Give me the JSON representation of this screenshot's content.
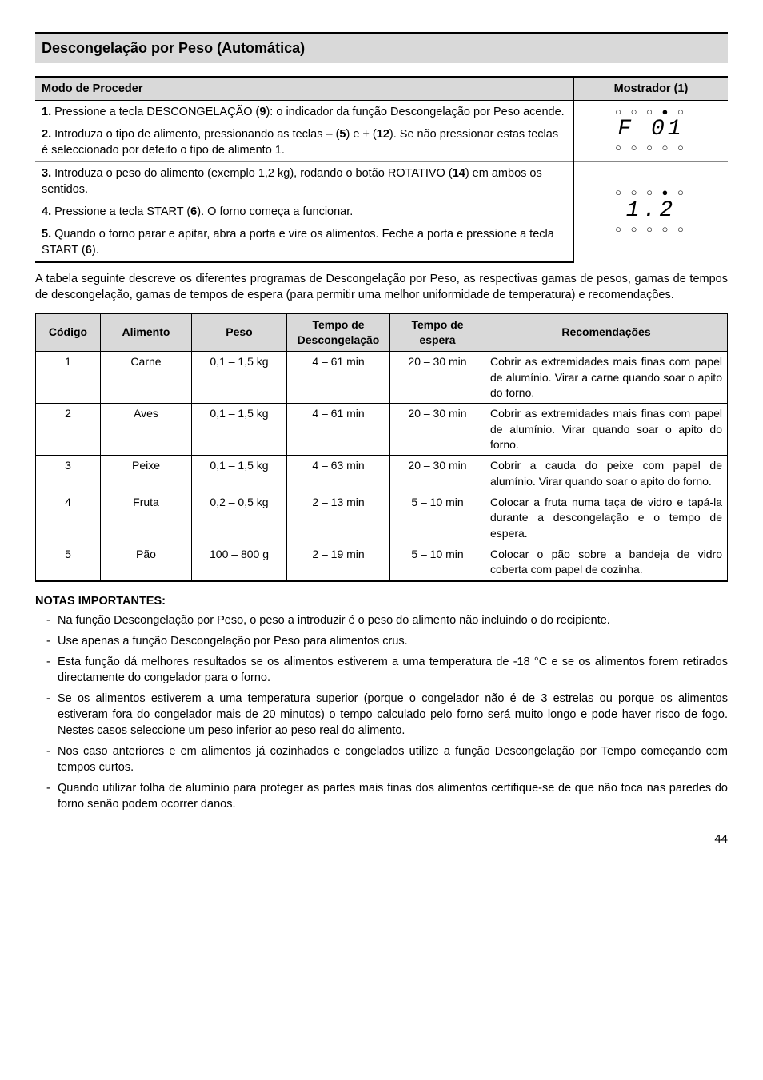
{
  "sectionTitle": "Descongelação por Peso (Automática)",
  "procTable": {
    "headers": {
      "col1": "Modo de Proceder",
      "col2": "Mostrador (1)"
    },
    "block1": {
      "step1": {
        "pre": "1.",
        "text": " Pressione a tecla DESCONGELAÇÃO (",
        "b1": "9",
        "text2": "): o indicador da função Descongelação por Peso acende."
      },
      "step2": {
        "pre": "2.",
        "text": " Introduza o tipo de alimento, pressionando as teclas – (",
        "b1": "5",
        "mid": ") e + (",
        "b2": "12",
        "text2": "). Se não pressionar estas teclas é seleccionado por defeito o tipo de alimento 1."
      },
      "display": {
        "dotsTop": "○ ○ ○ ● ○",
        "seg": "F  01",
        "dotsBot": "○ ○ ○ ○ ○"
      }
    },
    "block2": {
      "step3": {
        "pre": "3.",
        "text": " Introduza o peso do alimento (exemplo 1,2 kg), rodando o botão ROTATIVO (",
        "b1": "14",
        "text2": ") em ambos os sentidos."
      },
      "step4": {
        "pre": "4.",
        "text": " Pressione a tecla START (",
        "b1": "6",
        "text2": "). O forno começa a funcionar."
      },
      "step5": {
        "pre": "5.",
        "text": " Quando o forno parar e apitar, abra a porta e vire os alimentos. Feche a porta e pressione a tecla START (",
        "b1": "6",
        "text2": ")."
      },
      "display": {
        "dotsTop": "○ ○ ○ ● ○",
        "seg": "1.2",
        "dotsBot": "○ ○ ○ ○ ○"
      }
    }
  },
  "introPara": "A tabela seguinte descreve os diferentes programas de Descongelação por Peso, as respectivas gamas de pesos, gamas de tempos de descongelação, gamas de tempos de espera (para permitir uma melhor uniformidade de temperatura) e recomendações.",
  "dataTable": {
    "headers": {
      "codigo": "Código",
      "alimento": "Alimento",
      "peso": "Peso",
      "tempoDesc": "Tempo de Descongelação",
      "tempoEsp": "Tempo de espera",
      "recom": "Recomendações"
    },
    "rows": [
      {
        "codigo": "1",
        "alimento": "Carne",
        "peso": "0,1 – 1,5 kg",
        "tempoDesc": "4 – 61 min",
        "tempoEsp": "20 – 30 min",
        "recom": "Cobrir as extremidades mais finas com papel de alumínio. Virar a carne quando soar o apito do forno."
      },
      {
        "codigo": "2",
        "alimento": "Aves",
        "peso": "0,1 – 1,5 kg",
        "tempoDesc": "4 – 61 min",
        "tempoEsp": "20 – 30 min",
        "recom": "Cobrir as extremidades mais finas com papel de alumínio. Virar quando soar o apito do forno."
      },
      {
        "codigo": "3",
        "alimento": "Peixe",
        "peso": "0,1 – 1,5 kg",
        "tempoDesc": "4 – 63 min",
        "tempoEsp": "20 – 30 min",
        "recom": "Cobrir a cauda do peixe com papel de alumínio. Virar quando soar o apito do forno."
      },
      {
        "codigo": "4",
        "alimento": "Fruta",
        "peso": "0,2 – 0,5 kg",
        "tempoDesc": "2 – 13 min",
        "tempoEsp": "5 – 10 min",
        "recom": "Colocar a fruta numa taça de vidro e tapá-la durante a descongelação e o tempo de espera."
      },
      {
        "codigo": "5",
        "alimento": "Pão",
        "peso": "100 – 800 g",
        "tempoDesc": "2 – 19 min",
        "tempoEsp": "5 – 10 min",
        "recom": "Colocar o pão sobre a bandeja de vidro coberta com papel de cozinha."
      }
    ]
  },
  "notasTitle": "NOTAS IMPORTANTES:",
  "notas": [
    "Na função Descongelação por Peso, o peso a introduzir é o peso do alimento não incluindo o do recipiente.",
    "Use apenas a função Descongelação por Peso para alimentos crus.",
    "Esta função dá melhores resultados se os alimentos estiverem a uma temperatura de -18 °C e se os alimentos forem retirados directamente do congelador para o forno.",
    "Se os alimentos estiverem a uma temperatura superior (porque o congelador não é de 3 estrelas ou porque os alimentos estiveram fora do congelador mais de 20 minutos) o tempo calculado pelo forno será muito longo e pode haver risco de fogo. Nestes casos seleccione um peso inferior ao peso real do alimento.",
    "Nos caso anteriores e em alimentos já cozinhados e congelados utilize a função Descongelação por Tempo começando com tempos curtos.",
    "Quando utilizar folha de alumínio para proteger as partes mais finas dos alimentos certifique-se de que não toca nas paredes do forno senão podem ocorrer danos."
  ],
  "pageNumber": "44"
}
